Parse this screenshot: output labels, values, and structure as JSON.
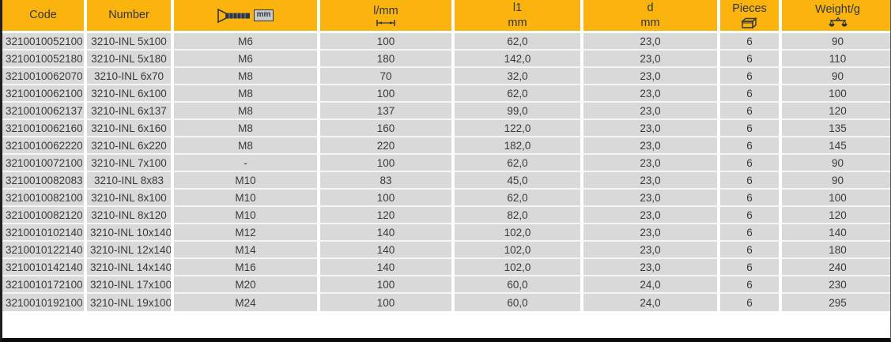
{
  "table": {
    "columns": [
      {
        "id": "code",
        "label": "Code"
      },
      {
        "id": "number",
        "label": "Number"
      },
      {
        "id": "thread",
        "label": "",
        "icon": "screw-mm-icon",
        "icon_label": "mm"
      },
      {
        "id": "l",
        "label": "l/mm",
        "icon": "dimension-icon"
      },
      {
        "id": "l1",
        "label": "l1",
        "sublabel": "mm"
      },
      {
        "id": "d",
        "label": "d",
        "sublabel": "mm"
      },
      {
        "id": "pieces",
        "label": "Pieces",
        "icon": "carton-icon"
      },
      {
        "id": "weight",
        "label": "Weight/g",
        "icon": "scale-icon"
      }
    ],
    "rows": [
      [
        "3210010052100",
        "3210-INL 5x100",
        "M6",
        "100",
        "62,0",
        "23,0",
        "6",
        "90"
      ],
      [
        "3210010052180",
        "3210-INL 5x180",
        "M6",
        "180",
        "142,0",
        "23,0",
        "6",
        "110"
      ],
      [
        "3210010062070",
        "3210-INL 6x70",
        "M8",
        "70",
        "32,0",
        "23,0",
        "6",
        "90"
      ],
      [
        "3210010062100",
        "3210-INL 6x100",
        "M8",
        "100",
        "62,0",
        "23,0",
        "6",
        "100"
      ],
      [
        "3210010062137",
        "3210-INL 6x137",
        "M8",
        "137",
        "99,0",
        "23,0",
        "6",
        "120"
      ],
      [
        "3210010062160",
        "3210-INL 6x160",
        "M8",
        "160",
        "122,0",
        "23,0",
        "6",
        "135"
      ],
      [
        "3210010062220",
        "3210-INL 6x220",
        "M8",
        "220",
        "182,0",
        "23,0",
        "6",
        "145"
      ],
      [
        "3210010072100",
        "3210-INL 7x100",
        "-",
        "100",
        "62,0",
        "23,0",
        "6",
        "90"
      ],
      [
        "3210010082083",
        "3210-INL 8x83",
        "M10",
        "83",
        "45,0",
        "23,0",
        "6",
        "90"
      ],
      [
        "3210010082100",
        "3210-INL 8x100",
        "M10",
        "100",
        "62,0",
        "23,0",
        "6",
        "100"
      ],
      [
        "3210010082120",
        "3210-INL 8x120",
        "M10",
        "120",
        "82,0",
        "23,0",
        "6",
        "120"
      ],
      [
        "3210010102140",
        "3210-INL 10x140",
        "M12",
        "140",
        "102,0",
        "23,0",
        "6",
        "140"
      ],
      [
        "3210010122140",
        "3210-INL 12x140",
        "M14",
        "140",
        "102,0",
        "23,0",
        "6",
        "180"
      ],
      [
        "3210010142140",
        "3210-INL 14x140",
        "M16",
        "140",
        "102,0",
        "23,0",
        "6",
        "240"
      ],
      [
        "3210010172100",
        "3210-INL 17x100",
        "M20",
        "100",
        "60,0",
        "24,0",
        "6",
        "230"
      ],
      [
        "3210010192100",
        "3210-INL 19x100",
        "M24",
        "100",
        "60,0",
        "24,0",
        "6",
        "295"
      ]
    ]
  },
  "colors": {
    "header_bg": "#FBB40E",
    "header_text": "#2F3640",
    "row_bg": "#D9D9D9",
    "row_text": "#3A3A3A",
    "gap_white": "#FFFFFF",
    "border_dark": "#1F1F1F"
  }
}
